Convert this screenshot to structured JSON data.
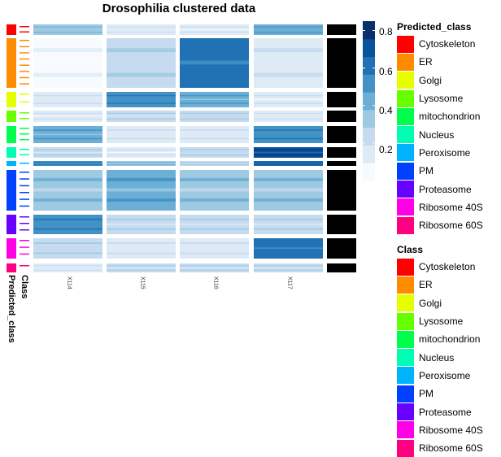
{
  "chart_data": {
    "type": "heatmap",
    "title": "Drosophilia clustered data",
    "columns": [
      "X114",
      "X115",
      "X116",
      "X117"
    ],
    "color_scale": {
      "range": [
        0,
        0.85
      ],
      "ticks": [
        0.2,
        0.4,
        0.6,
        0.8
      ],
      "colors": [
        "#f7fbff",
        "#deebf7",
        "#c6dbef",
        "#9ecae1",
        "#6baed6",
        "#4292c6",
        "#2171b5",
        "#08519c",
        "#08306b"
      ]
    },
    "row_clusters": [
      {
        "class": "Cytoskeleton",
        "values": [
          0.35,
          0.15,
          0.08,
          0.45
        ]
      },
      {
        "class": "ER",
        "values": [
          0.05,
          0.25,
          0.6,
          0.15
        ]
      },
      {
        "class": "Golgi",
        "values": [
          0.15,
          0.55,
          0.4,
          0.1
        ]
      },
      {
        "class": "Lysosome",
        "values": [
          0.1,
          0.2,
          0.25,
          0.15
        ]
      },
      {
        "class": "mitochondrion",
        "values": [
          0.4,
          0.15,
          0.12,
          0.55
        ]
      },
      {
        "class": "Nucleus",
        "values": [
          0.2,
          0.1,
          0.25,
          0.75
        ]
      },
      {
        "class": "Peroxisome",
        "values": [
          0.55,
          0.35,
          0.25,
          0.65
        ]
      },
      {
        "class": "PM",
        "values": [
          0.3,
          0.4,
          0.3,
          0.3
        ]
      },
      {
        "class": "Proteasome",
        "values": [
          0.55,
          0.2,
          0.2,
          0.2
        ]
      },
      {
        "class": "Ribosome 40S",
        "values": [
          0.25,
          0.15,
          0.15,
          0.6
        ]
      },
      {
        "class": "Ribosome 60S",
        "values": [
          0.15,
          0.2,
          0.2,
          0.2
        ]
      }
    ],
    "tracks": [
      "Predicted_class",
      "Class"
    ],
    "legends": [
      {
        "title": "Predicted_class",
        "position": "right-top"
      },
      {
        "title": "Class",
        "position": "right-bottom"
      }
    ]
  },
  "classes": [
    {
      "name": "Cytoskeleton",
      "color": "#ff0000"
    },
    {
      "name": "ER",
      "color": "#ff8c00"
    },
    {
      "name": "Golgi",
      "color": "#e6ff00"
    },
    {
      "name": "Lysosome",
      "color": "#66ff00"
    },
    {
      "name": "mitochondrion",
      "color": "#00ff4d"
    },
    {
      "name": "Nucleus",
      "color": "#00ffb3"
    },
    {
      "name": "Peroxisome",
      "color": "#00b3ff"
    },
    {
      "name": "PM",
      "color": "#0040ff"
    },
    {
      "name": "Proteasome",
      "color": "#6600ff"
    },
    {
      "name": "Ribosome 40S",
      "color": "#ff00e6"
    },
    {
      "name": "Ribosome 60S",
      "color": "#ff0080"
    }
  ],
  "legend_predicted": {
    "title": "Predicted_class"
  },
  "legend_class": {
    "title": "Class"
  },
  "scale_labels": [
    "0.8",
    "0.6",
    "0.4",
    "0.2"
  ]
}
